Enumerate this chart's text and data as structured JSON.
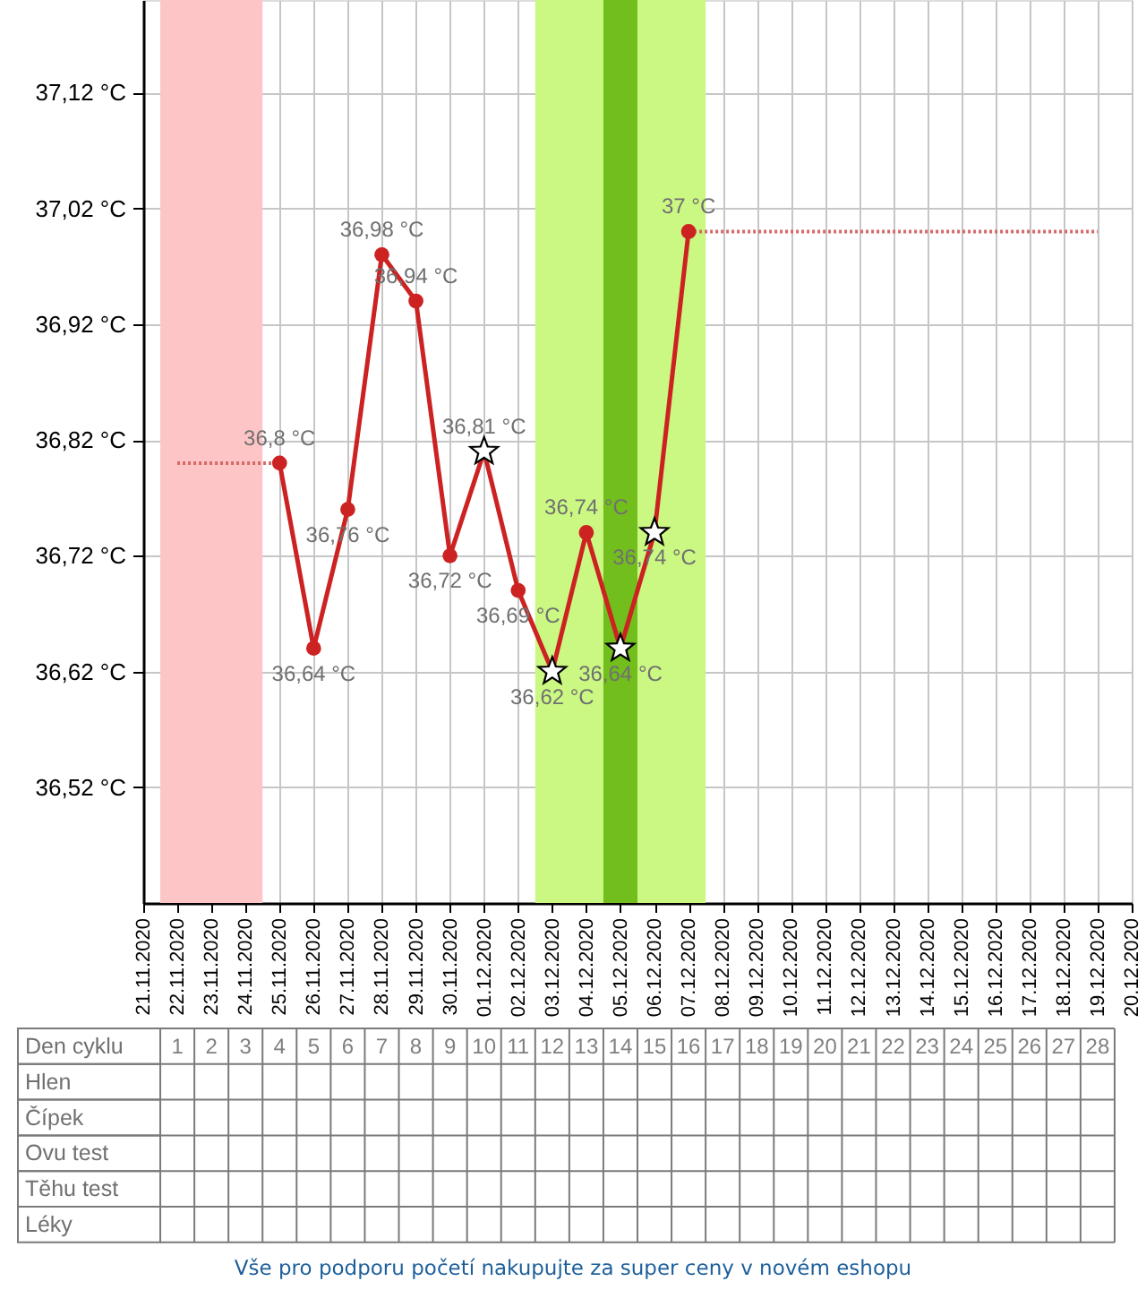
{
  "chart_data": [
    {
      "type": "line",
      "categories": [
        "21.11.2020",
        "22.11.2020",
        "23.11.2020",
        "24.11.2020",
        "25.11.2020",
        "26.11.2020",
        "27.11.2020",
        "28.11.2020",
        "29.11.2020",
        "30.11.2020",
        "01.12.2020",
        "02.12.2020",
        "03.12.2020",
        "04.12.2020",
        "05.12.2020",
        "06.12.2020",
        "07.12.2020",
        "08.12.2020",
        "09.12.2020",
        "10.12.2020",
        "11.12.2020",
        "12.12.2020",
        "13.12.2020",
        "14.12.2020",
        "15.12.2020",
        "16.12.2020",
        "17.12.2020",
        "18.12.2020",
        "19.12.2020",
        "20.12.2020"
      ],
      "series": [
        {
          "line_style": "dotted",
          "marker": "none",
          "color": "#d46a6a",
          "values": [
            null,
            36.8,
            36.8,
            36.8,
            36.8,
            null,
            null,
            null,
            null,
            null,
            null,
            null,
            null,
            null,
            null,
            null,
            null,
            null,
            null,
            null,
            null,
            null,
            null,
            null,
            null,
            null,
            null,
            null,
            null,
            null
          ]
        },
        {
          "line_style": "dotted",
          "marker": "none",
          "color": "#d46a6a",
          "values": [
            null,
            null,
            null,
            null,
            null,
            null,
            null,
            null,
            null,
            null,
            null,
            null,
            null,
            null,
            null,
            null,
            37,
            37,
            37,
            37,
            37,
            37,
            37,
            37,
            37,
            37,
            37,
            37,
            37,
            null
          ]
        },
        {
          "line_style": "solid",
          "marker": "circle",
          "color": "#cc2222",
          "values": [
            null,
            null,
            null,
            null,
            36.8,
            36.64,
            36.76,
            36.98,
            36.94,
            36.72,
            36.81,
            36.69,
            36.62,
            36.74,
            36.64,
            36.74,
            37,
            null,
            null,
            null,
            null,
            null,
            null,
            null,
            null,
            null,
            null,
            null,
            null,
            null
          ],
          "value_labels": [
            null,
            null,
            null,
            null,
            "36,8 °C",
            "36,64 °C",
            "36,76 °C",
            "36,98 °C",
            "36,94 °C",
            "36,72 °C",
            "36,81 °C",
            "36,69 °C",
            "36,62 °C",
            "36,74 °C",
            "36,64 °C",
            "36,74 °C",
            "37 °C",
            null,
            null,
            null,
            null,
            null,
            null,
            null,
            null,
            null,
            null,
            null,
            null,
            null
          ]
        },
        {
          "type": "scatter",
          "marker": "star",
          "color": "#ffffff",
          "values": [
            null,
            null,
            null,
            null,
            null,
            null,
            null,
            null,
            null,
            null,
            36.81,
            null,
            36.62,
            null,
            36.64,
            36.74,
            null,
            null,
            null,
            null,
            null,
            null,
            null,
            null,
            null,
            null,
            null,
            null,
            null,
            null
          ]
        }
      ],
      "ylim": [
        36.42,
        37.2
      ],
      "yticks": [
        {
          "value": 36.52,
          "label": "36,52 °C"
        },
        {
          "value": 36.62,
          "label": "36,62 °C"
        },
        {
          "value": 36.72,
          "label": "36,72 °C"
        },
        {
          "value": 36.82,
          "label": "36,82 °C"
        },
        {
          "value": 36.92,
          "label": "36,92 °C"
        },
        {
          "value": 37.02,
          "label": "37,02 °C"
        },
        {
          "value": 37.12,
          "label": "37,12 °C"
        }
      ],
      "x2label": "Den cyklu",
      "x2lim": [
        0.5,
        28.5
      ],
      "x2ticks": [
        1,
        2,
        3,
        4,
        5,
        6,
        7,
        8,
        9,
        10,
        11,
        12,
        13,
        14,
        15,
        16,
        17,
        18,
        19,
        20,
        21,
        22,
        23,
        24,
        25,
        26,
        27,
        28
      ],
      "bands": [
        {
          "axis": "x",
          "from": "22.11.2020",
          "to": "24.11.2020",
          "color": "#fdc5c5"
        },
        {
          "axis": "x",
          "from": "03.12.2020",
          "to": "07.12.2020",
          "color": "#cbf882"
        },
        {
          "axis": "x",
          "from": "05.12.2020",
          "to": "05.12.2020",
          "color": "#72be1c"
        }
      ],
      "grid": true
    },
    {
      "type": "other",
      "y_categories": [
        "Hlen",
        "Čípek",
        "Ovu test",
        "Těhu test",
        "Léky"
      ],
      "annotations": [
        "Vše pro podporu početí nakupujte za super ceny v novém eshopu"
      ]
    }
  ]
}
